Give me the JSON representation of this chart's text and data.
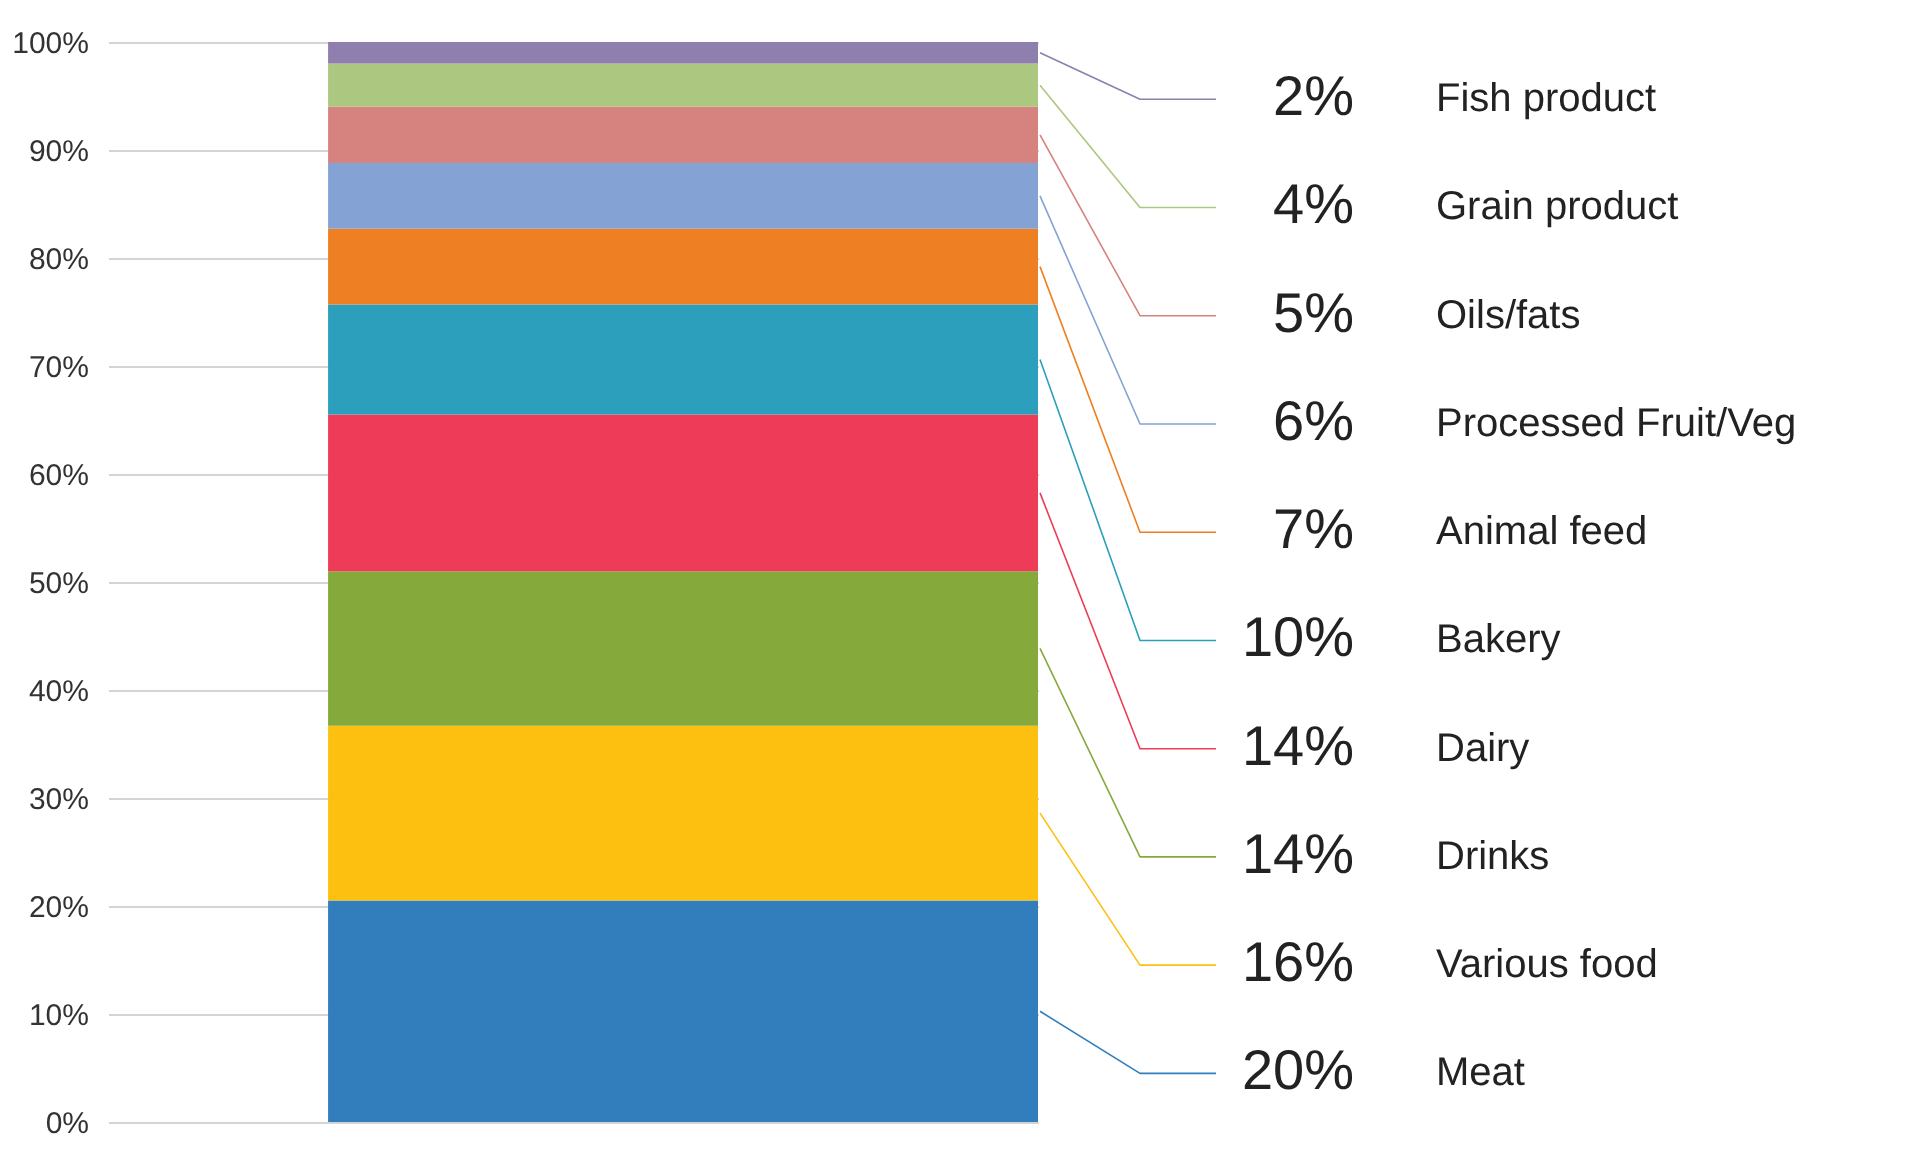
{
  "chart_data": {
    "type": "bar",
    "stacked": true,
    "categories": [
      null
    ],
    "ylim": [
      0,
      100
    ],
    "yticks": [
      {
        "value": 0,
        "label": "0%"
      },
      {
        "value": 10,
        "label": "10%"
      },
      {
        "value": 20,
        "label": "20%"
      },
      {
        "value": 30,
        "label": "30%"
      },
      {
        "value": 40,
        "label": "40%"
      },
      {
        "value": 50,
        "label": "50%"
      },
      {
        "value": 60,
        "label": "60%"
      },
      {
        "value": 70,
        "label": "70%"
      },
      {
        "value": 80,
        "label": "80%"
      },
      {
        "value": 90,
        "label": "90%"
      },
      {
        "value": 100,
        "label": "100%"
      }
    ],
    "grid": "y",
    "series": [
      {
        "name": "Meat",
        "color": "#327dbb",
        "values": [
          20.5
        ],
        "value_labels": [
          "20%"
        ]
      },
      {
        "name": "Various food",
        "color": "#fdc010",
        "values": [
          16.2
        ],
        "value_labels": [
          "16%"
        ]
      },
      {
        "name": "Drinks",
        "color": "#86a93c",
        "values": [
          14.3
        ],
        "value_labels": [
          "14%"
        ]
      },
      {
        "name": "Dairy",
        "color": "#ee3b58",
        "values": [
          14.5
        ],
        "value_labels": [
          "14%"
        ]
      },
      {
        "name": "Bakery",
        "color": "#2b9fbb",
        "values": [
          10.2
        ],
        "value_labels": [
          "10%"
        ]
      },
      {
        "name": "Animal feed",
        "color": "#ee7f22",
        "values": [
          7
        ],
        "value_labels": [
          "7%"
        ]
      },
      {
        "name": "Processed Fruit/Veg",
        "color": "#84a3d4",
        "values": [
          6.1
        ],
        "value_labels": [
          "6%"
        ]
      },
      {
        "name": "Oils/fats",
        "color": "#d6837f",
        "values": [
          5.2
        ],
        "value_labels": [
          "5%"
        ]
      },
      {
        "name": "Grain product",
        "color": "#acc780",
        "values": [
          4
        ],
        "value_labels": [
          "4%"
        ]
      },
      {
        "name": "Fish product",
        "color": "#8f7fae",
        "values": [
          2
        ],
        "value_labels": [
          "2%"
        ]
      }
    ]
  }
}
